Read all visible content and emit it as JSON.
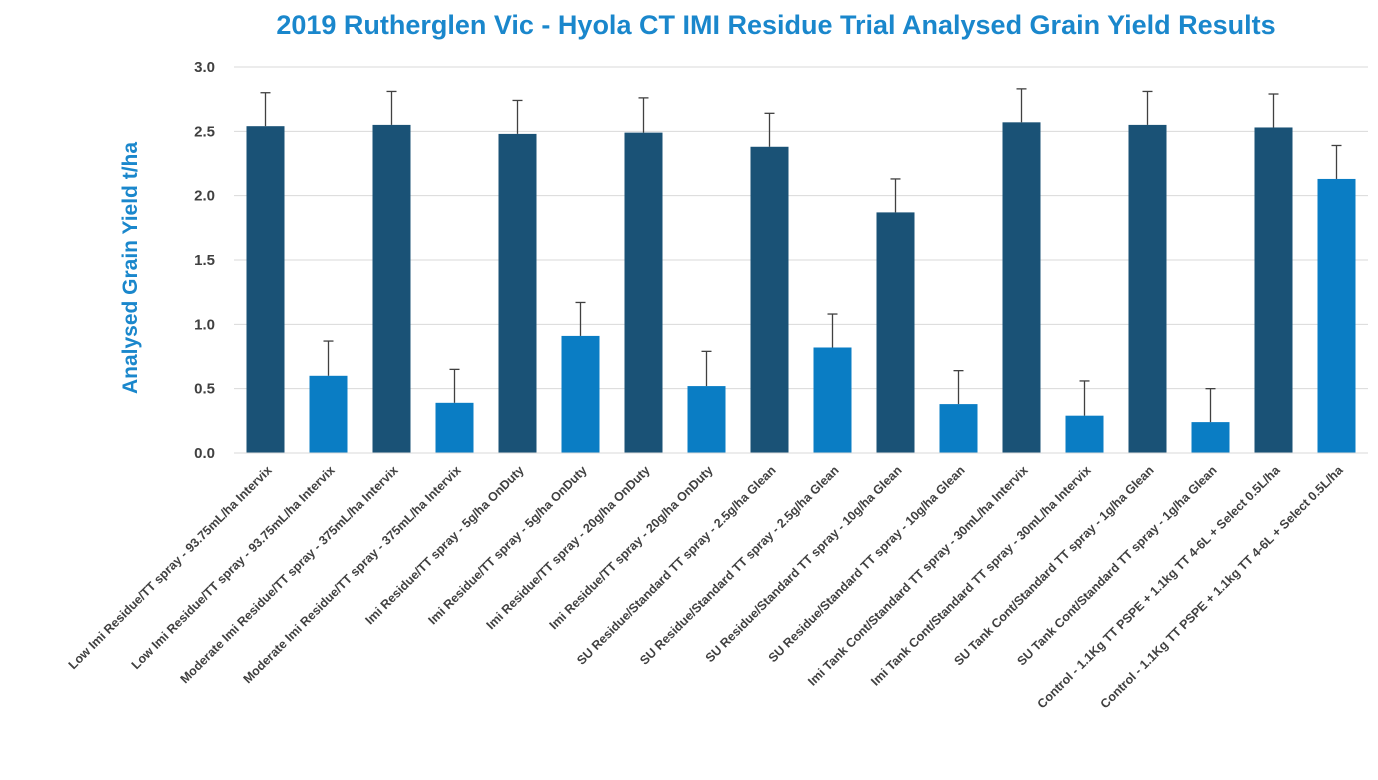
{
  "chart_data": {
    "type": "bar",
    "title": "2019 Rutherglen Vic - Hyola CT IMI Residue Trial Analysed Grain Yield Results",
    "xlabel": "",
    "ylabel": "Analysed Grain Yield t/ha",
    "ylim": [
      0,
      3.0
    ],
    "yticks": [
      "0.0",
      "0.5",
      "1.0",
      "1.5",
      "2.0",
      "2.5",
      "3.0"
    ],
    "grid": true,
    "legend": "none",
    "error_bars": "upper",
    "colors": {
      "dark": "#1a5276",
      "light": "#0a7dc4",
      "title": "#1a87cc",
      "ylabel": "#1a87cc",
      "grid": "#d9d9d9",
      "error": "#404040"
    },
    "categories": [
      "Low Imi Residue/TT spray - 93.75mL/ha Intervix",
      "Low Imi Residue/TT spray - 93.75mL/ha Intervix",
      "Moderate Imi Residue/TT spray - 375mL/ha Intervix",
      "Moderate Imi Residue/TT spray - 375mL/ha Intervix",
      "Imi Residue/TT spray - 5g/ha OnDuty",
      "Imi Residue/TT spray - 5g/ha OnDuty",
      "Imi Residue/TT spray - 20g/ha OnDuty",
      "Imi Residue/TT spray - 20g/ha OnDuty",
      "SU Residue/Standard TT spray - 2.5g/ha Glean",
      "SU Residue/Standard TT spray - 2.5g/ha Glean",
      "SU Residue/Standard TT spray - 10g/ha Glean",
      "SU Residue/Standard TT spray - 10g/ha Glean",
      "Imi Tank Cont/Standard TT spray - 30mL/ha Intervix",
      "Imi Tank Cont/Standard TT spray - 30mL/ha Intervix",
      "SU Tank Cont/Standard TT spray - 1g/ha Glean",
      "SU Tank Cont/Standard TT spray - 1g/ha Glean",
      "Control - 1.1Kg TT PSPE + 1.1kg TT 4-6L + Select 0.5L/ha",
      "Control - 1.1Kg TT PSPE + 1.1kg TT 4-6L + Select 0.5L/ha"
    ],
    "values": [
      2.54,
      0.6,
      2.55,
      0.39,
      2.48,
      0.91,
      2.49,
      0.52,
      2.38,
      0.82,
      1.87,
      0.38,
      2.57,
      0.29,
      2.55,
      0.24,
      2.53,
      2.13
    ],
    "error_upper": [
      2.8,
      0.87,
      2.81,
      0.65,
      2.74,
      1.17,
      2.76,
      0.79,
      2.64,
      1.08,
      2.13,
      0.64,
      2.83,
      0.56,
      2.81,
      0.5,
      2.79,
      2.39
    ],
    "bar_color_keys": [
      "dark",
      "light",
      "dark",
      "light",
      "dark",
      "light",
      "dark",
      "light",
      "dark",
      "light",
      "dark",
      "light",
      "dark",
      "light",
      "dark",
      "light",
      "dark",
      "light"
    ]
  }
}
